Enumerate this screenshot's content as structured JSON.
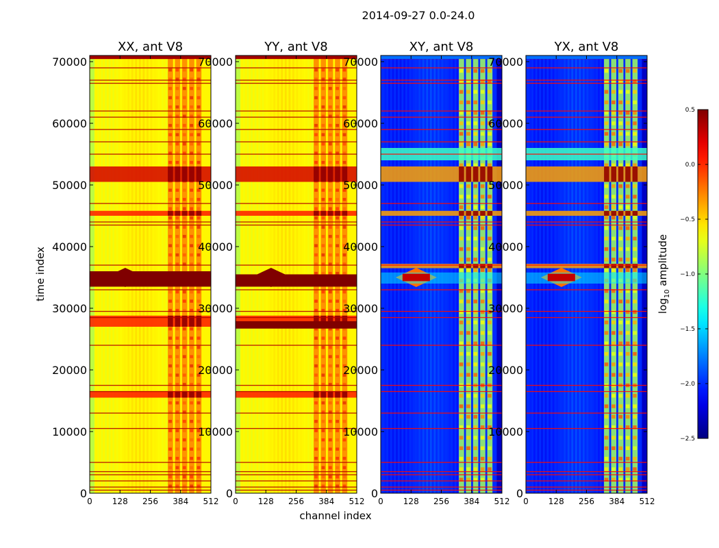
{
  "figure": {
    "title": "2014-09-27 0.0-24.0"
  },
  "chart_data": {
    "type": "heatmap",
    "panels": [
      {
        "title": "XX, ant V8",
        "kind": "parallel",
        "strong_band": [
          33500,
          36000
        ]
      },
      {
        "title": "YY, ant V8",
        "kind": "parallel",
        "strong_band": [
          33500,
          35500
        ],
        "extra_band": [
          26700,
          27900
        ]
      },
      {
        "title": "XY, ant V8",
        "kind": "cross"
      },
      {
        "title": "YX, ant V8",
        "kind": "cross"
      }
    ],
    "xlabel": "channel index",
    "ylabel": "time index",
    "xlim": [
      0,
      512
    ],
    "ylim": [
      0,
      71000
    ],
    "x_ticks": [
      0,
      128,
      256,
      384,
      512
    ],
    "x_tick_labels": [
      "0",
      "128",
      "256",
      "384",
      "512"
    ],
    "y_ticks": [
      0,
      10000,
      20000,
      30000,
      40000,
      50000,
      60000,
      70000
    ],
    "y_tick_labels": [
      "0",
      "10000",
      "20000",
      "30000",
      "40000",
      "50000",
      "60000",
      "70000"
    ],
    "colorbar": {
      "label_main": "log",
      "label_sub": "10",
      "label_rest": " amplitude",
      "range": [
        -2.5,
        0.5
      ],
      "colormap": "jet",
      "ticks": [
        0.5,
        0.0,
        -0.5,
        -1.0,
        -1.5,
        -2.0,
        -2.5
      ],
      "tick_labels": [
        "0.5",
        "0.0",
        "−0.5",
        "−1.0",
        "−1.5",
        "−2.0",
        "−2.5"
      ]
    },
    "features": {
      "parallel_base_value": -0.6,
      "cross_base_value": -2.0,
      "rfi_channel_range": [
        330,
        480
      ],
      "bright_bands": [
        [
          50500,
          53000
        ],
        [
          45000,
          45800
        ],
        [
          27000,
          28800
        ],
        [
          15500,
          16500
        ]
      ],
      "cross_bright_bands": [
        [
          50500,
          53000
        ],
        [
          54000,
          56000
        ],
        [
          45000,
          45800
        ],
        [
          36500,
          37200
        ]
      ],
      "horizontal_lines": [
        70500,
        69000,
        67000,
        66500,
        62000,
        61000,
        59000,
        57000,
        55000,
        47000,
        44000,
        43500,
        37000,
        33000,
        29500,
        28500,
        24000,
        17500,
        16500,
        13000,
        10500,
        5000,
        3500,
        3000,
        2000,
        1000,
        500
      ]
    }
  }
}
